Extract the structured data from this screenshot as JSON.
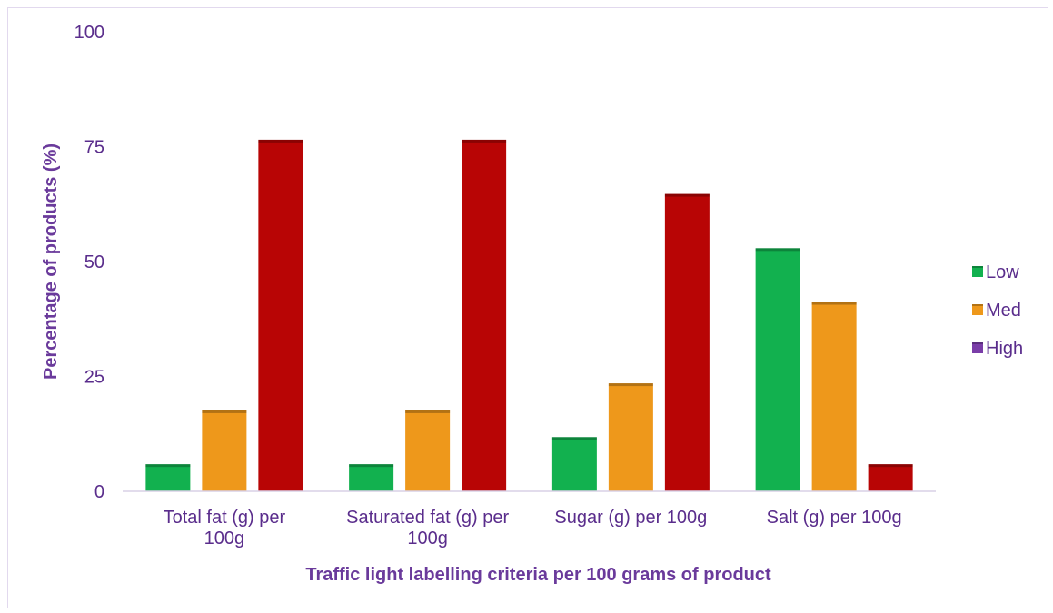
{
  "chart_data": {
    "type": "bar",
    "title": "",
    "xlabel": "Traffic light labelling criteria per 100 grams of product",
    "ylabel": "Percentage of products (%)",
    "ylim": [
      0,
      100
    ],
    "yticks": [
      0,
      25,
      50,
      75,
      100
    ],
    "categories": [
      [
        "Total fat (g) per",
        "100g"
      ],
      [
        "Saturated fat (g) per",
        "100g"
      ],
      [
        "Sugar (g) per 100g"
      ],
      [
        "Salt (g) per 100g"
      ]
    ],
    "series": [
      {
        "name": "Low",
        "values": [
          5.9,
          5.9,
          11.8,
          52.9
        ]
      },
      {
        "name": "Med",
        "values": [
          17.6,
          17.6,
          23.5,
          41.2
        ]
      },
      {
        "name": "High",
        "values": [
          76.5,
          76.5,
          64.7,
          5.9
        ]
      }
    ],
    "bar_colors": [
      "#12b14f",
      "#ee981b",
      "#b80505"
    ],
    "legend_swatch_colors": [
      "#12b14f",
      "#ee981b",
      "#7a3da8"
    ],
    "legend_position": "right",
    "grid": false,
    "text_color": "#5a2d8c",
    "title_color": "#6a3a9b"
  }
}
